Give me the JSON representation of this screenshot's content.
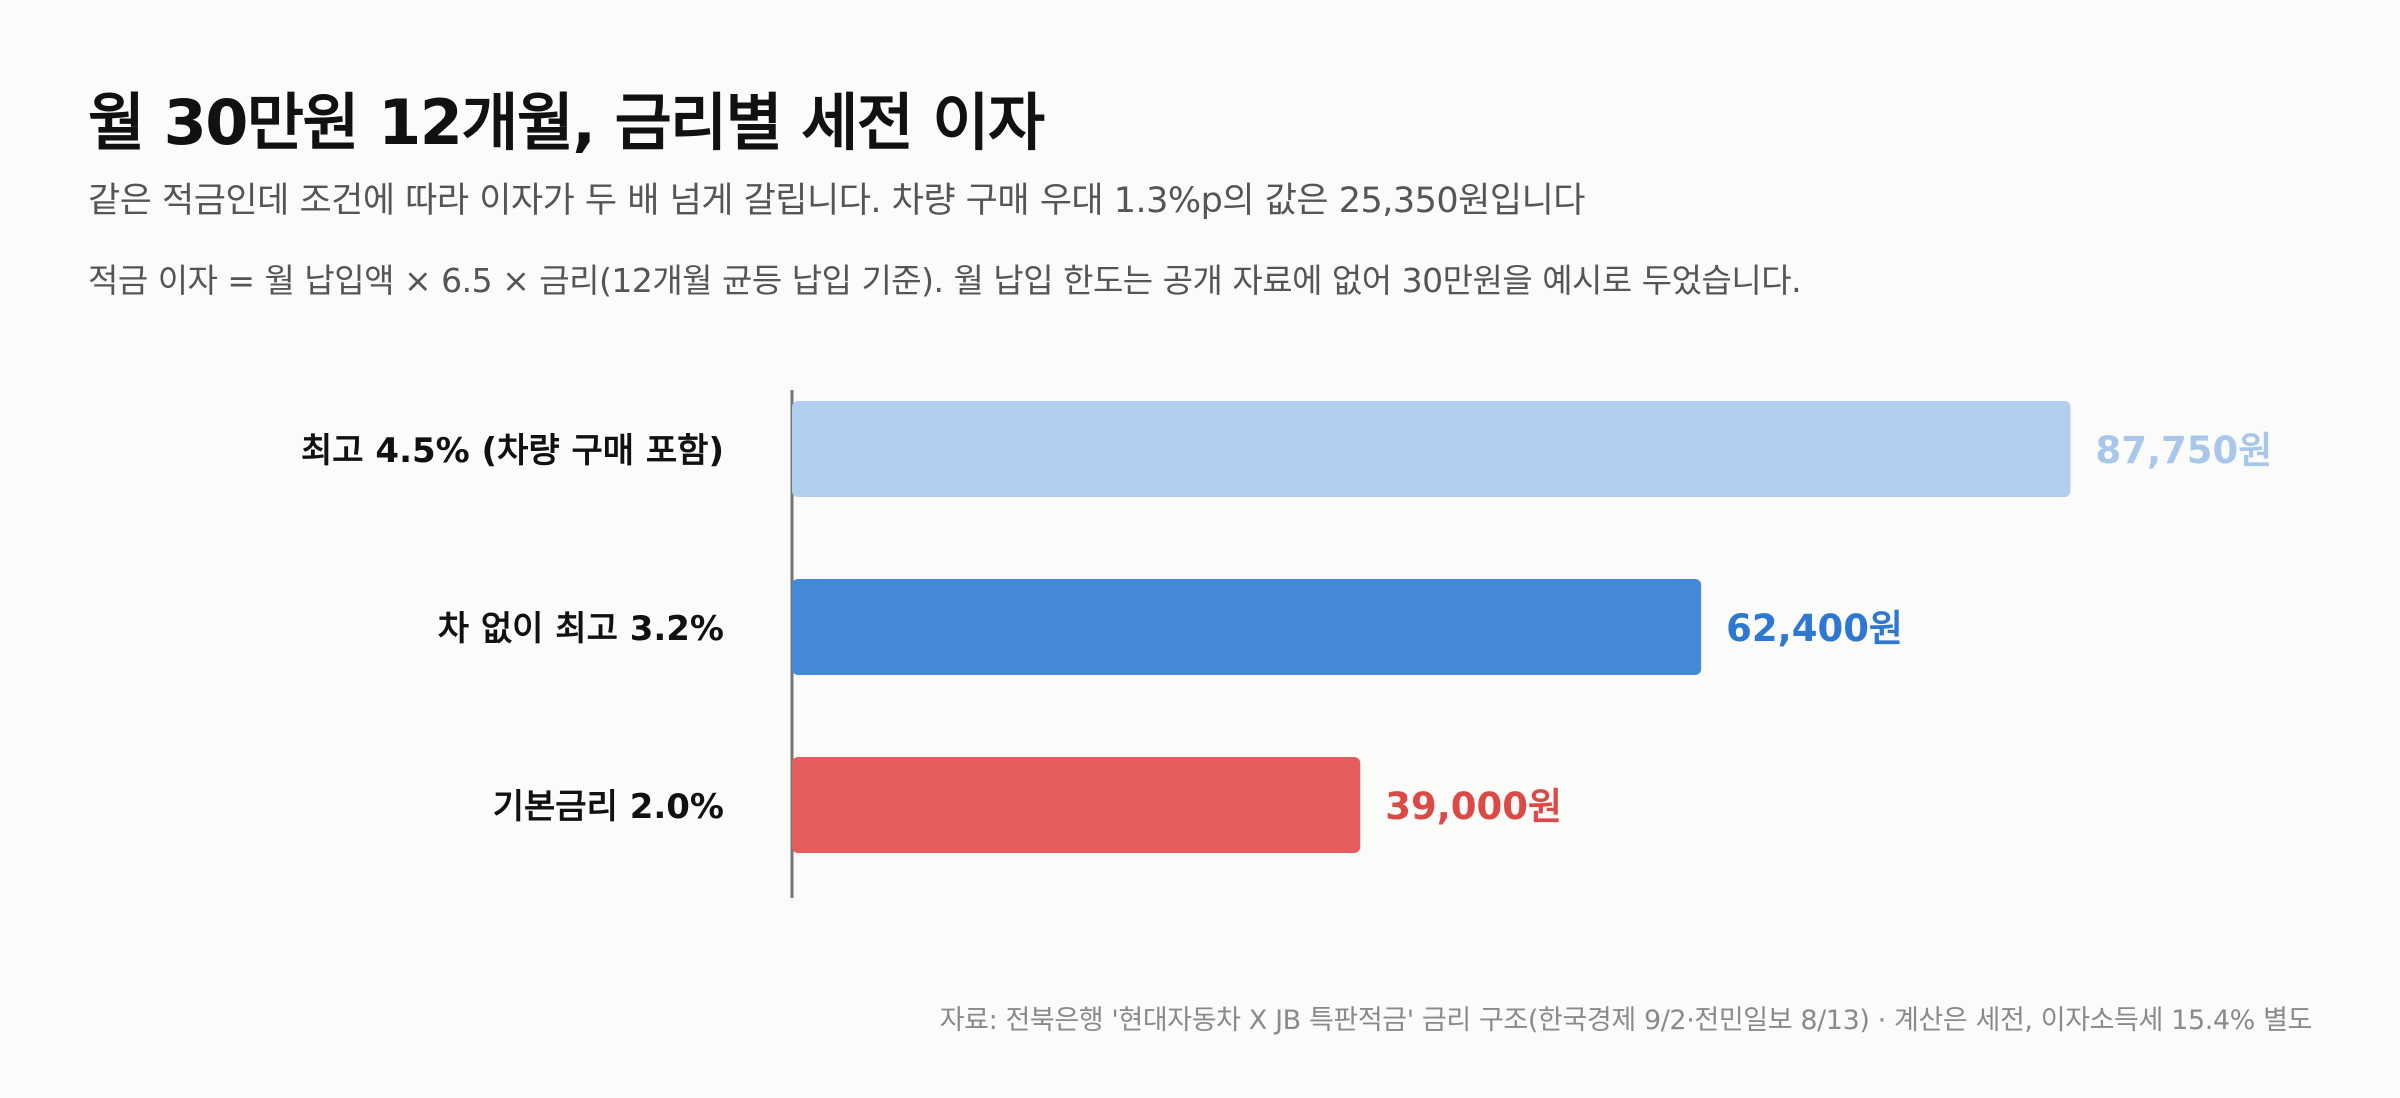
{
  "header": {
    "title": "월 30만원 12개월, 금리별 세전 이자",
    "subtitle": "같은 적금인데 조건에 따라 이자가 두 배 넘게 갈립니다. 차량 구매 우대 1.3%p의 값은 25,350원입니다",
    "formula": "적금 이자 = 월 납입액 × 6.5 × 금리(12개월 균등 납입 기준). 월 납입 한도는 공개 자료에 없어 30만원을 예시로 두었습니다."
  },
  "footer": {
    "source": "자료: 전북은행 '현대자동차 X JB 특판적금' 금리 구조(한국경제 9/2·전민일보 8/13) · 계산은 세전, 이자소득세 15.4% 별도"
  },
  "chart_data": {
    "type": "bar",
    "orientation": "horizontal",
    "categories": [
      "최고 4.5% (차량 구매 포함)",
      "차 없이 최고 3.2%",
      "기본금리 2.0%"
    ],
    "values": [
      87750,
      62400,
      39000
    ],
    "value_labels": [
      "87,750원",
      "62,400원",
      "39,000원"
    ],
    "colors": [
      "#b0ceee",
      "#4589db",
      "#e55d5c"
    ],
    "label_colors": [
      "#a9c7ea",
      "#2f78d2",
      "#dc4a48"
    ],
    "xlim": [
      0,
      100000
    ],
    "grid": false
  }
}
